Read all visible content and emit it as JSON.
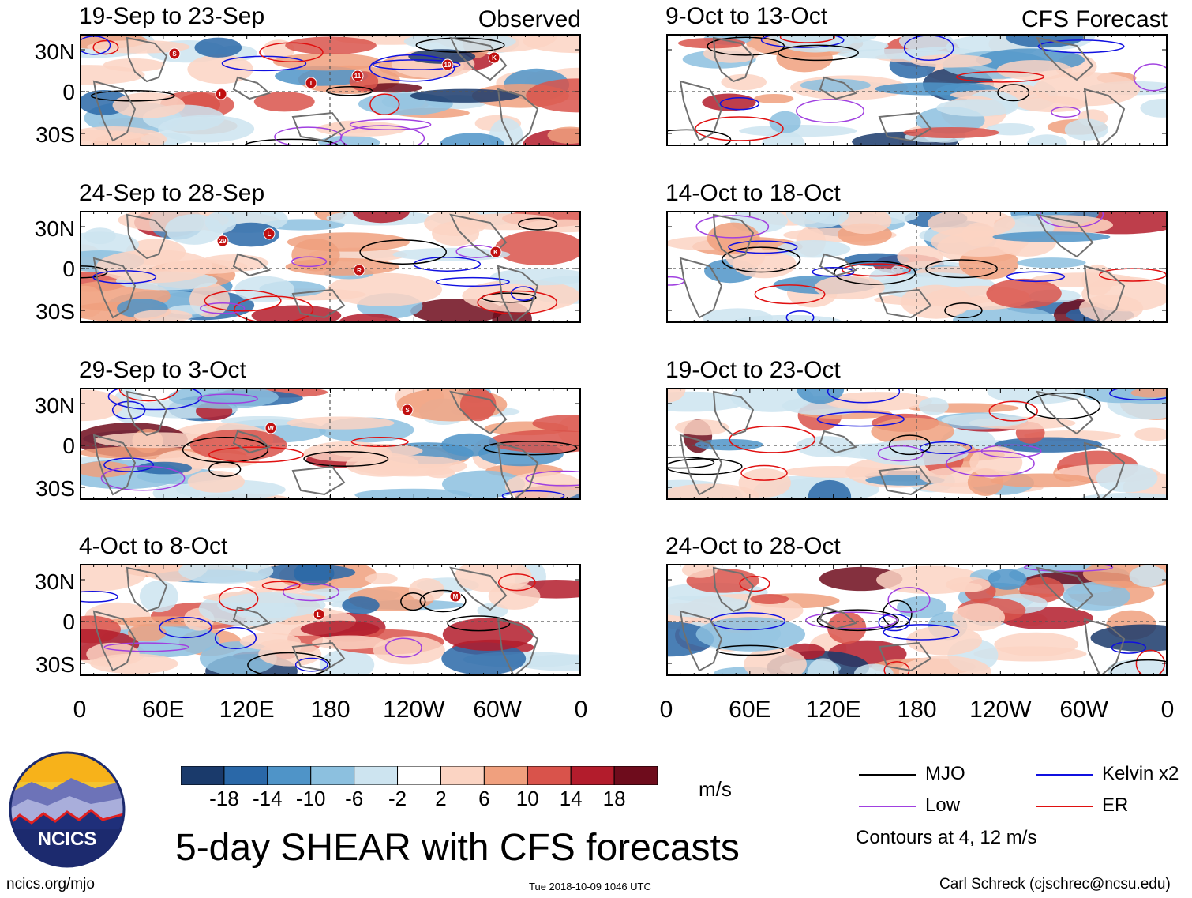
{
  "chart_data": {
    "type": "heatmap",
    "title": "5-day SHEAR with CFS forecasts",
    "x_ticks": [
      "0",
      "60E",
      "120E",
      "180",
      "120W",
      "60W",
      "0"
    ],
    "y_ticks": [
      "30N",
      "0",
      "30S"
    ],
    "column_tags": {
      "observed": "Observed",
      "forecast": "CFS Forecast"
    },
    "panels": [
      {
        "title": "19-Sep to 23-Sep",
        "column": "observed",
        "row": 0,
        "storms": [
          "S",
          "T",
          "19",
          "L",
          "11",
          "K"
        ]
      },
      {
        "title": "24-Sep to 28-Sep",
        "column": "observed",
        "row": 1,
        "storms": [
          "29",
          "R",
          "K",
          "L"
        ]
      },
      {
        "title": "29-Sep to 3-Oct",
        "column": "observed",
        "row": 2,
        "storms": [
          "W",
          "S"
        ]
      },
      {
        "title": "4-Oct to 8-Oct",
        "column": "observed",
        "row": 3,
        "storms": [
          "L",
          "M"
        ]
      },
      {
        "title": "9-Oct to 13-Oct",
        "column": "forecast",
        "row": 0,
        "storms": []
      },
      {
        "title": "14-Oct to 18-Oct",
        "column": "forecast",
        "row": 1,
        "storms": []
      },
      {
        "title": "19-Oct to 23-Oct",
        "column": "forecast",
        "row": 2,
        "storms": []
      },
      {
        "title": "24-Oct to 28-Oct",
        "column": "forecast",
        "row": 3,
        "storms": []
      }
    ],
    "colorbar": {
      "unit": "m/s",
      "labels": [
        "-18",
        "-14",
        "-10",
        "-6",
        "-2",
        "2",
        "6",
        "10",
        "14",
        "18"
      ],
      "colors": [
        "#1a3a6b",
        "#2a68a8",
        "#4f94c8",
        "#8cc0df",
        "#cde4f0",
        "#ffffff",
        "#fbd4c3",
        "#f0a07e",
        "#d9534b",
        "#b31c2c",
        "#6e0c1c"
      ]
    },
    "legend": [
      {
        "label": "MJO",
        "color": "#000000"
      },
      {
        "label": "Kelvin x2",
        "color": "#1010e0"
      },
      {
        "label": "Low",
        "color": "#a040e0"
      },
      {
        "label": "ER",
        "color": "#e01010"
      }
    ],
    "contour_note": "Contours at 4, 12 m/s"
  },
  "footer": {
    "logo_text": "NCICS",
    "site": "ncics.org/mjo",
    "timestamp": "Tue 2018-10-09 1046 UTC",
    "credit": "Carl Schreck (cjschrec@ncsu.edu)"
  }
}
